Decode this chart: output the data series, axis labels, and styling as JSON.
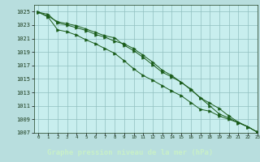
{
  "title": "Graphe pression niveau de la mer (hPa)",
  "background_color": "#b8dede",
  "plot_bg_color": "#c8eeee",
  "grid_color": "#90c0c0",
  "line_color": "#1a5c1a",
  "title_bg": "#2d7a2d",
  "title_fg": "#c8f0c8",
  "xlim": [
    -0.5,
    23
  ],
  "ylim": [
    1007,
    1026
  ],
  "yticks": [
    1007,
    1009,
    1011,
    1013,
    1015,
    1017,
    1019,
    1021,
    1023,
    1025
  ],
  "xticks": [
    0,
    1,
    2,
    3,
    4,
    5,
    6,
    7,
    8,
    9,
    10,
    11,
    12,
    13,
    14,
    15,
    16,
    17,
    18,
    19,
    20,
    21,
    22,
    23
  ],
  "series1": [
    1024.9,
    1024.3,
    1023.5,
    1023.2,
    1022.9,
    1022.4,
    1021.9,
    1021.4,
    1021.1,
    1020.0,
    1019.2,
    1018.2,
    1017.1,
    1016.0,
    1015.3,
    1014.5,
    1013.4,
    1012.2,
    1011.4,
    1010.6,
    1009.5,
    1008.6,
    1007.9,
    1007.1
  ],
  "series2": [
    1024.9,
    1024.6,
    1023.3,
    1023.0,
    1022.6,
    1022.2,
    1021.6,
    1021.2,
    1020.6,
    1020.2,
    1019.5,
    1018.5,
    1017.5,
    1016.3,
    1015.5,
    1014.5,
    1013.5,
    1012.2,
    1011.0,
    1009.8,
    1009.2,
    1008.5,
    1007.9,
    1007.1
  ],
  "series3": [
    1024.9,
    1024.2,
    1022.3,
    1022.0,
    1021.5,
    1020.8,
    1020.2,
    1019.5,
    1018.8,
    1017.7,
    1016.5,
    1015.5,
    1014.8,
    1014.0,
    1013.2,
    1012.5,
    1011.5,
    1010.5,
    1010.2,
    1009.5,
    1009.0,
    1008.5,
    1007.9,
    1007.1
  ]
}
